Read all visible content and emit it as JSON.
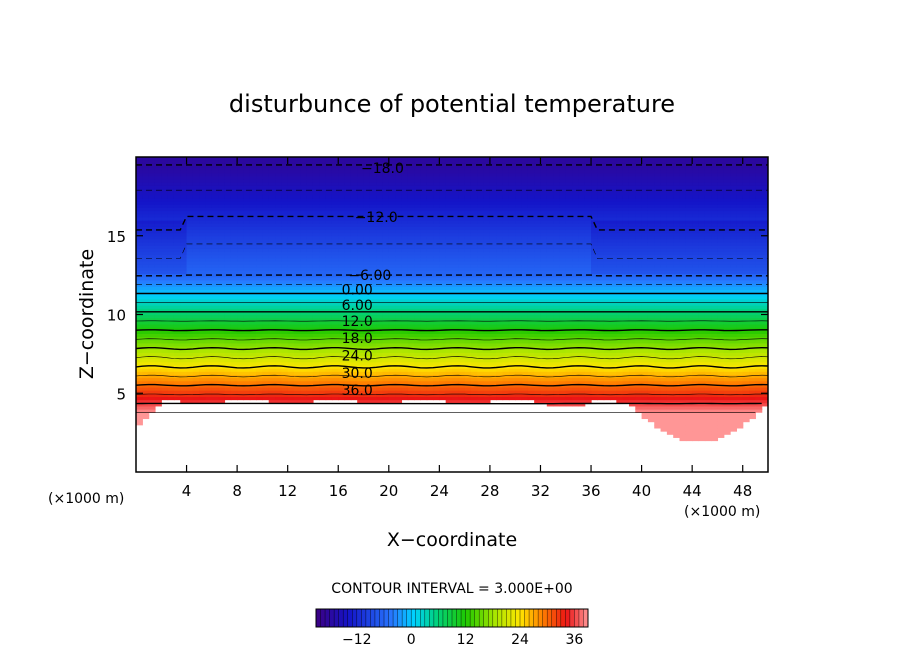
{
  "chart_data": {
    "type": "contour",
    "title": "disturbunce of potential temperature",
    "xlabel": "X−coordinate",
    "ylabel": "Z−coordinate",
    "x_unit": "(×1000 m)",
    "y_unit": "(×1000 m)",
    "xlim": [
      0,
      50
    ],
    "ylim": [
      0,
      20
    ],
    "x_ticks": [
      4,
      8,
      12,
      16,
      20,
      24,
      28,
      32,
      36,
      40,
      44,
      48
    ],
    "y_ticks": [
      5,
      10,
      15
    ],
    "contour_interval_text": "CONTOUR INTERVAL = 3.000E+00",
    "contour_interval": 3.0,
    "color_range": [
      -21,
      39
    ],
    "colorbar_ticks": [
      "−12",
      "0",
      "12",
      "24",
      "36"
    ],
    "colorbar_tick_values": [
      -12,
      0,
      12,
      24,
      36
    ],
    "contour_labels": [
      {
        "text": "−18.0",
        "value": -18,
        "x": 19.5,
        "z": 19.3
      },
      {
        "text": "−12.0",
        "value": -12,
        "x": 19.0,
        "z": 16.2
      },
      {
        "text": "−6.00",
        "value": -6,
        "x": 18.5,
        "z": 12.5
      },
      {
        "text": "0.00",
        "value": 0,
        "x": 17.5,
        "z": 11.6
      },
      {
        "text": "6.00",
        "value": 6,
        "x": 17.5,
        "z": 10.6
      },
      {
        "text": "12.0",
        "value": 12,
        "x": 17.5,
        "z": 9.6
      },
      {
        "text": "18.0",
        "value": 18,
        "x": 17.5,
        "z": 8.5
      },
      {
        "text": "24.0",
        "value": 24,
        "x": 17.5,
        "z": 7.4
      },
      {
        "text": "30.0",
        "value": 30,
        "x": 17.5,
        "z": 6.3
      },
      {
        "text": "36.0",
        "value": 36,
        "x": 17.5,
        "z": 5.2
      }
    ],
    "grid": false,
    "legend": "colorbar-bottom"
  }
}
